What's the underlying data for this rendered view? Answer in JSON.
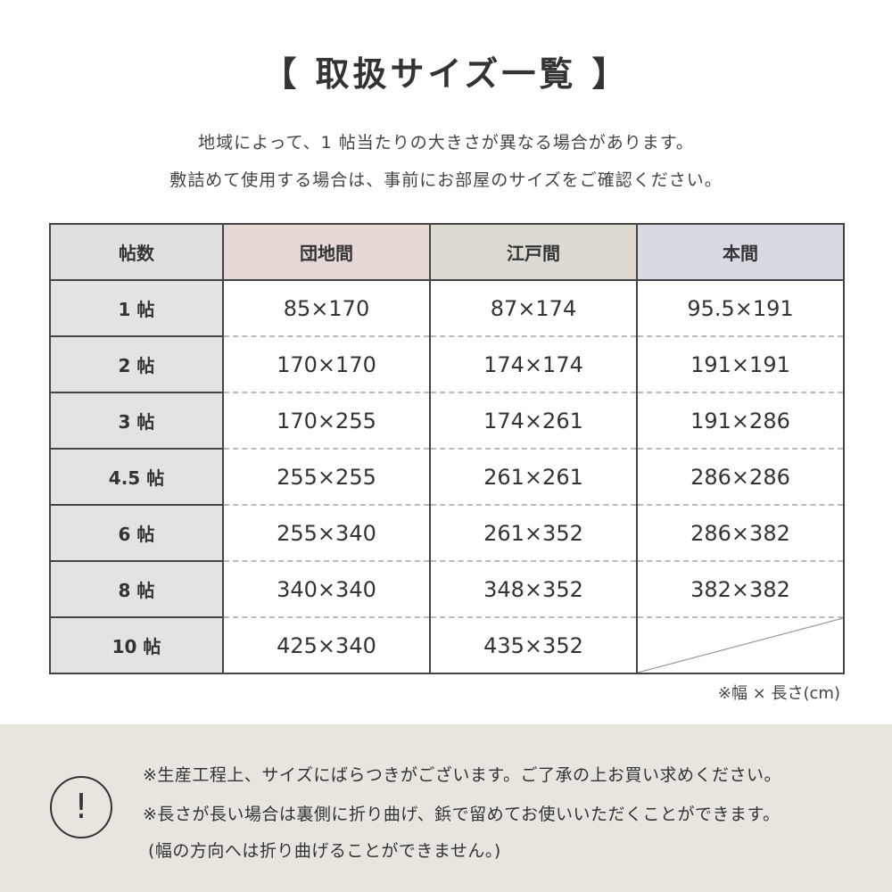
{
  "title": "【 取扱サイズ一覧 】",
  "subtitle_lines": [
    "地域によって、1 帖当たりの大きさが異なる場合があります。",
    "敷詰めて使用する場合は、事前にお部屋のサイズをご確認ください。"
  ],
  "table": {
    "headers": [
      "帖数",
      "団地間",
      "江戸間",
      "本間"
    ],
    "header_colors": [
      "#e0e0e0",
      "#e6d9d5",
      "#dddbd1",
      "#d7dae3"
    ],
    "rows": [
      [
        "1 帖",
        "85×170",
        "87×174",
        "95.5×191"
      ],
      [
        "2 帖",
        "170×170",
        "174×174",
        "191×191"
      ],
      [
        "3 帖",
        "170×255",
        "174×261",
        "191×286"
      ],
      [
        "4.5 帖",
        "255×255",
        "261×261",
        "286×286"
      ],
      [
        "6 帖",
        "255×340",
        "261×352",
        "286×382"
      ],
      [
        "8 帖",
        "340×340",
        "348×352",
        "382×382"
      ],
      [
        "10 帖",
        "425×340",
        "435×352",
        ""
      ]
    ]
  },
  "unit_note": "※幅 × 長さ(cm)",
  "notice": {
    "icon": "exclamation-circle-icon",
    "icon_glyph": "!",
    "lines": [
      "※生産工程上、サイズにばらつきがございます。ご了承の上お買い求めください。",
      "※長さが長い場合は裏側に折り曲げ、鋲で留めてお使いいただくことができます。",
      "(幅の方向へは折り曲げることができません。)"
    ]
  }
}
